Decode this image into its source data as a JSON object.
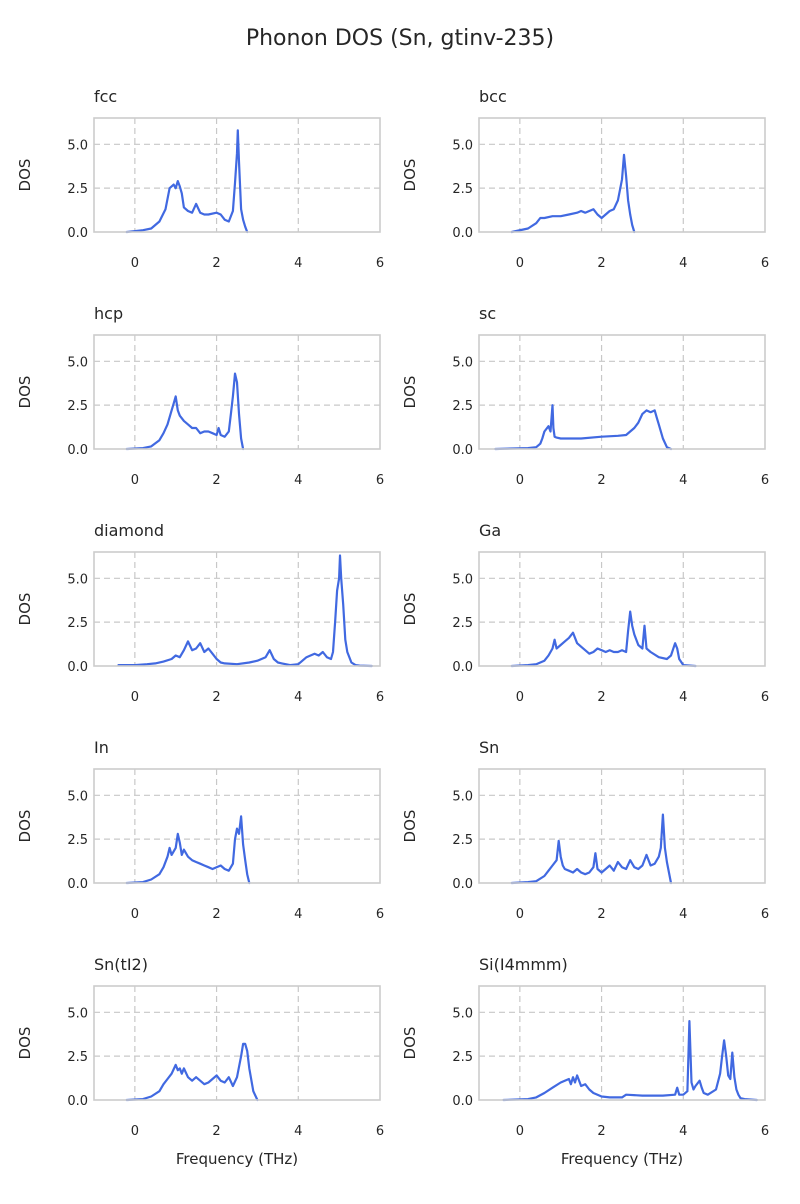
{
  "title": "Phonon DOS (Sn, gtinv-235)",
  "chart_data": {
    "type": "line",
    "xlim": [
      -1,
      6
    ],
    "ylim": [
      0,
      6.5
    ],
    "xticks": [
      0,
      2,
      4,
      6
    ],
    "yticks": [
      0.0,
      2.5,
      5.0
    ],
    "xtick_labels": [
      "0",
      "2",
      "4",
      "6"
    ],
    "ytick_labels": [
      "0.0",
      "2.5",
      "5.0"
    ],
    "xlabel": "Frequency (THz)",
    "ylabel": "DOS",
    "grid": true,
    "line_color": "#4169e1",
    "panels": [
      {
        "title": "fcc",
        "x": [
          -0.2,
          0.2,
          0.4,
          0.6,
          0.75,
          0.85,
          0.95,
          1.0,
          1.05,
          1.1,
          1.15,
          1.2,
          1.3,
          1.4,
          1.5,
          1.6,
          1.7,
          1.8,
          2.0,
          2.1,
          2.2,
          2.3,
          2.4,
          2.45,
          2.5,
          2.52,
          2.55,
          2.6,
          2.65,
          2.7,
          2.75
        ],
        "y": [
          0,
          0.1,
          0.2,
          0.6,
          1.3,
          2.5,
          2.7,
          2.5,
          2.9,
          2.6,
          2.2,
          1.4,
          1.2,
          1.1,
          1.6,
          1.1,
          1.0,
          1.0,
          1.1,
          1.0,
          0.7,
          0.6,
          1.2,
          2.8,
          4.5,
          5.8,
          4.0,
          1.3,
          0.7,
          0.3,
          0
        ]
      },
      {
        "title": "bcc",
        "x": [
          -0.2,
          0.2,
          0.4,
          0.5,
          0.6,
          0.8,
          1.0,
          1.2,
          1.4,
          1.5,
          1.6,
          1.8,
          1.9,
          2.0,
          2.2,
          2.3,
          2.4,
          2.5,
          2.55,
          2.6,
          2.65,
          2.7,
          2.75,
          2.8
        ],
        "y": [
          0,
          0.2,
          0.5,
          0.8,
          0.8,
          0.9,
          0.9,
          1.0,
          1.1,
          1.2,
          1.1,
          1.3,
          1.0,
          0.8,
          1.2,
          1.3,
          1.8,
          3.0,
          4.4,
          3.2,
          1.8,
          1.0,
          0.4,
          0
        ]
      },
      {
        "title": "hcp",
        "x": [
          -0.2,
          0.2,
          0.4,
          0.6,
          0.7,
          0.8,
          0.9,
          0.95,
          1.0,
          1.05,
          1.1,
          1.2,
          1.3,
          1.4,
          1.5,
          1.6,
          1.7,
          1.8,
          1.9,
          2.0,
          2.05,
          2.1,
          2.2,
          2.3,
          2.35,
          2.4,
          2.45,
          2.5,
          2.55,
          2.6,
          2.65
        ],
        "y": [
          0,
          0.05,
          0.15,
          0.5,
          0.9,
          1.4,
          2.2,
          2.6,
          3.0,
          2.2,
          1.9,
          1.6,
          1.4,
          1.2,
          1.2,
          0.9,
          1.0,
          1.0,
          0.9,
          0.8,
          1.2,
          0.8,
          0.7,
          1.0,
          2.0,
          3.0,
          4.3,
          3.8,
          2.0,
          0.6,
          0
        ]
      },
      {
        "title": "sc",
        "x": [
          -0.6,
          0.2,
          0.4,
          0.5,
          0.55,
          0.6,
          0.7,
          0.75,
          0.8,
          0.82,
          0.85,
          0.9,
          1.0,
          1.5,
          2.0,
          2.4,
          2.6,
          2.7,
          2.8,
          2.9,
          3.0,
          3.1,
          3.2,
          3.3,
          3.35,
          3.4,
          3.5,
          3.6,
          3.7
        ],
        "y": [
          0,
          0.05,
          0.1,
          0.3,
          0.6,
          1.0,
          1.3,
          1.0,
          2.5,
          1.2,
          0.7,
          0.65,
          0.6,
          0.6,
          0.7,
          0.75,
          0.8,
          1.0,
          1.2,
          1.5,
          2.0,
          2.2,
          2.1,
          2.2,
          1.8,
          1.4,
          0.6,
          0.1,
          0
        ]
      },
      {
        "title": "diamond",
        "x": [
          -0.4,
          0.0,
          0.3,
          0.5,
          0.7,
          0.9,
          1.0,
          1.1,
          1.2,
          1.3,
          1.4,
          1.5,
          1.6,
          1.7,
          1.8,
          1.9,
          2.0,
          2.1,
          2.2,
          2.5,
          2.8,
          3.0,
          3.2,
          3.3,
          3.4,
          3.5,
          3.6,
          3.8,
          4.0,
          4.2,
          4.3,
          4.4,
          4.5,
          4.6,
          4.7,
          4.8,
          4.85,
          4.9,
          4.95,
          5.0,
          5.02,
          5.05,
          5.1,
          5.15,
          5.2,
          5.3,
          5.4,
          5.5,
          5.8
        ],
        "y": [
          0.05,
          0.05,
          0.1,
          0.15,
          0.25,
          0.4,
          0.6,
          0.5,
          0.9,
          1.4,
          0.9,
          1.0,
          1.3,
          0.8,
          1.0,
          0.7,
          0.4,
          0.2,
          0.15,
          0.1,
          0.2,
          0.3,
          0.5,
          0.9,
          0.4,
          0.2,
          0.15,
          0.05,
          0.1,
          0.5,
          0.6,
          0.7,
          0.6,
          0.8,
          0.5,
          0.4,
          0.8,
          2.5,
          4.3,
          5.0,
          6.3,
          5.0,
          3.5,
          1.5,
          0.8,
          0.2,
          0.05,
          0.02,
          0
        ]
      },
      {
        "title": "Ga",
        "x": [
          -0.2,
          0.2,
          0.4,
          0.6,
          0.7,
          0.8,
          0.85,
          0.9,
          1.0,
          1.1,
          1.2,
          1.3,
          1.4,
          1.5,
          1.6,
          1.7,
          1.8,
          1.9,
          2.0,
          2.1,
          2.2,
          2.3,
          2.4,
          2.5,
          2.6,
          2.65,
          2.7,
          2.75,
          2.8,
          2.9,
          3.0,
          3.05,
          3.1,
          3.2,
          3.4,
          3.6,
          3.7,
          3.8,
          3.85,
          3.9,
          4.0,
          4.3
        ],
        "y": [
          0,
          0.05,
          0.1,
          0.3,
          0.6,
          1.0,
          1.5,
          1.0,
          1.2,
          1.4,
          1.6,
          1.9,
          1.3,
          1.1,
          0.9,
          0.7,
          0.8,
          1.0,
          0.9,
          0.8,
          0.9,
          0.8,
          0.8,
          0.9,
          0.8,
          2.0,
          3.1,
          2.3,
          1.8,
          1.2,
          1.0,
          2.3,
          1.0,
          0.8,
          0.5,
          0.4,
          0.6,
          1.3,
          1.0,
          0.4,
          0.05,
          0
        ]
      },
      {
        "title": "In",
        "x": [
          -0.2,
          0.2,
          0.4,
          0.6,
          0.7,
          0.8,
          0.85,
          0.9,
          1.0,
          1.05,
          1.1,
          1.15,
          1.2,
          1.3,
          1.4,
          1.5,
          1.6,
          1.7,
          1.8,
          1.9,
          2.0,
          2.1,
          2.2,
          2.3,
          2.4,
          2.45,
          2.5,
          2.55,
          2.6,
          2.65,
          2.7,
          2.75,
          2.8
        ],
        "y": [
          0,
          0.05,
          0.2,
          0.5,
          0.9,
          1.5,
          2.0,
          1.6,
          2.0,
          2.8,
          2.3,
          1.6,
          1.9,
          1.5,
          1.3,
          1.2,
          1.1,
          1.0,
          0.9,
          0.8,
          0.9,
          1.0,
          0.8,
          0.7,
          1.1,
          2.5,
          3.1,
          2.8,
          3.8,
          2.2,
          1.3,
          0.5,
          0
        ]
      },
      {
        "title": "Sn",
        "x": [
          -0.2,
          0.2,
          0.4,
          0.6,
          0.7,
          0.8,
          0.9,
          0.95,
          1.0,
          1.05,
          1.1,
          1.2,
          1.3,
          1.4,
          1.5,
          1.6,
          1.7,
          1.8,
          1.85,
          1.9,
          2.0,
          2.1,
          2.2,
          2.3,
          2.4,
          2.5,
          2.6,
          2.7,
          2.8,
          2.9,
          3.0,
          3.1,
          3.2,
          3.3,
          3.4,
          3.45,
          3.5,
          3.55,
          3.6,
          3.7
        ],
        "y": [
          0,
          0.05,
          0.1,
          0.4,
          0.7,
          1.0,
          1.3,
          2.4,
          1.5,
          1.0,
          0.8,
          0.7,
          0.6,
          0.8,
          0.6,
          0.5,
          0.6,
          0.9,
          1.7,
          0.8,
          0.6,
          0.8,
          1.0,
          0.7,
          1.2,
          0.9,
          0.8,
          1.3,
          0.9,
          0.8,
          1.0,
          1.6,
          1.0,
          1.1,
          1.5,
          2.0,
          3.9,
          2.0,
          1.2,
          0
        ]
      },
      {
        "title": "Sn(tI2)",
        "x": [
          -0.2,
          0.2,
          0.4,
          0.6,
          0.7,
          0.8,
          0.9,
          1.0,
          1.05,
          1.1,
          1.15,
          1.2,
          1.3,
          1.4,
          1.5,
          1.6,
          1.7,
          1.8,
          1.9,
          2.0,
          2.1,
          2.2,
          2.3,
          2.4,
          2.5,
          2.6,
          2.65,
          2.7,
          2.75,
          2.8,
          2.9,
          3.0
        ],
        "y": [
          0,
          0.05,
          0.2,
          0.5,
          0.9,
          1.2,
          1.5,
          2.0,
          1.7,
          1.8,
          1.5,
          1.8,
          1.3,
          1.1,
          1.3,
          1.1,
          0.9,
          1.0,
          1.2,
          1.4,
          1.1,
          1.0,
          1.3,
          0.8,
          1.3,
          2.5,
          3.2,
          3.2,
          2.8,
          1.8,
          0.5,
          0
        ]
      },
      {
        "title": "Si(I4mmm)",
        "x": [
          -0.4,
          0.2,
          0.4,
          0.6,
          0.8,
          1.0,
          1.1,
          1.2,
          1.25,
          1.3,
          1.35,
          1.4,
          1.5,
          1.6,
          1.7,
          1.8,
          2.0,
          2.2,
          2.5,
          2.6,
          3.0,
          3.5,
          3.8,
          3.85,
          3.9,
          4.0,
          4.1,
          4.15,
          4.2,
          4.25,
          4.3,
          4.4,
          4.45,
          4.5,
          4.6,
          4.8,
          4.9,
          4.95,
          5.0,
          5.05,
          5.1,
          5.15,
          5.2,
          5.25,
          5.3,
          5.35,
          5.4,
          5.5,
          5.8
        ],
        "y": [
          0,
          0.05,
          0.15,
          0.4,
          0.7,
          1.0,
          1.1,
          1.2,
          0.9,
          1.3,
          1.0,
          1.4,
          0.8,
          0.9,
          0.6,
          0.4,
          0.2,
          0.15,
          0.15,
          0.3,
          0.25,
          0.25,
          0.3,
          0.7,
          0.3,
          0.3,
          0.5,
          4.5,
          1.0,
          0.6,
          0.8,
          1.1,
          0.7,
          0.4,
          0.3,
          0.6,
          1.5,
          2.5,
          3.4,
          2.5,
          1.4,
          1.2,
          2.7,
          1.3,
          0.6,
          0.3,
          0.1,
          0.05,
          0
        ]
      }
    ]
  }
}
